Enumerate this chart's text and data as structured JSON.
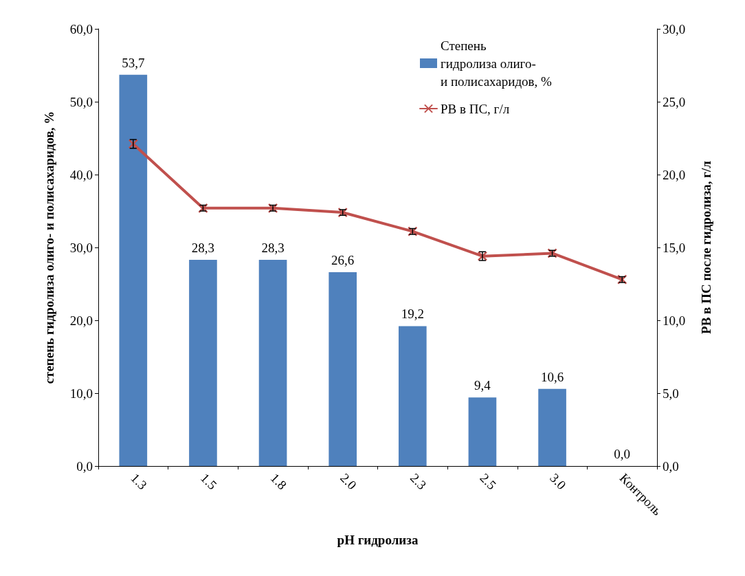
{
  "chart_data": {
    "type": "bar",
    "xlabel": "pH гидролиза",
    "ylabel": "степень гидролиза олиго- и полисахаридов, %",
    "y2label": "РВ в ПС после гидролиза, г/л",
    "categories": [
      "1.3",
      "1.5",
      "1.8",
      "2.0",
      "2.3",
      "2.5",
      "3.0",
      "Контроль"
    ],
    "series": [
      {
        "name": "Степень гидролиза олиго- и полисахаридов, %",
        "color": "#4f81bd",
        "values": [
          53.7,
          28.3,
          28.3,
          26.6,
          19.2,
          9.4,
          10.6,
          0.0
        ],
        "value_labels": [
          "53,7",
          "28,3",
          "28,3",
          "26,6",
          "19,2",
          "9,4",
          "10,6",
          "0,0"
        ]
      },
      {
        "name": "РВ в ПС, г/л",
        "type": "line",
        "axis": "y2",
        "color": "#c0504d",
        "marker": "cross",
        "values": [
          22.1,
          17.7,
          17.7,
          17.4,
          16.1,
          14.4,
          14.6,
          12.8
        ],
        "errors": [
          0.3,
          0.2,
          0.2,
          0.2,
          0.2,
          0.3,
          0.2,
          0.2
        ]
      }
    ],
    "ylim": [
      0,
      60
    ],
    "yticks": [
      {
        "value": 0,
        "label": "0,0"
      },
      {
        "value": 10,
        "label": "10,0"
      },
      {
        "value": 20,
        "label": "20,0"
      },
      {
        "value": 30,
        "label": "30,0"
      },
      {
        "value": 40,
        "label": "40,0"
      },
      {
        "value": 50,
        "label": "50,0"
      },
      {
        "value": 60,
        "label": "60,0"
      }
    ],
    "y2lim": [
      0,
      30
    ],
    "y2ticks": [
      {
        "value": 0,
        "label": "0,0"
      },
      {
        "value": 5,
        "label": "5,0"
      },
      {
        "value": 10,
        "label": "10,0"
      },
      {
        "value": 15,
        "label": "15,0"
      },
      {
        "value": 20,
        "label": "20,0"
      },
      {
        "value": 25,
        "label": "25,0"
      },
      {
        "value": 30,
        "label": "30,0"
      }
    ],
    "grid": false,
    "legend": "top right"
  }
}
